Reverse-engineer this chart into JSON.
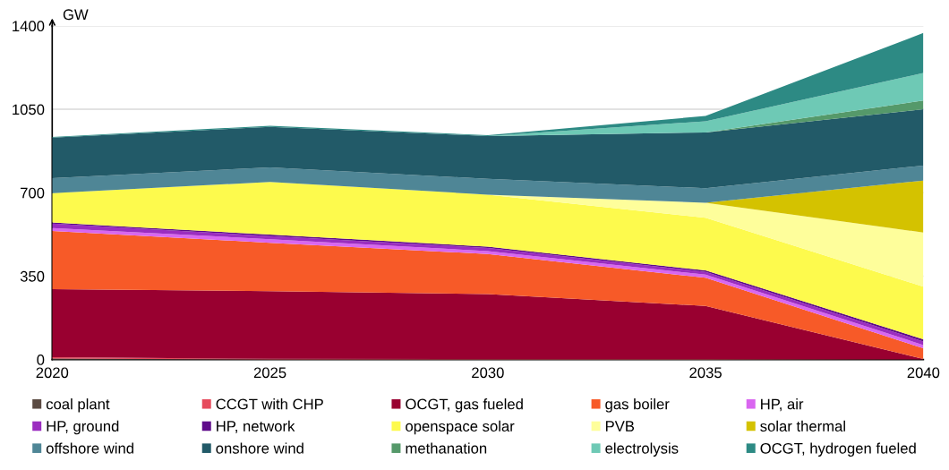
{
  "chart_data": {
    "type": "area",
    "stacked": true,
    "ylabel": "GW",
    "x": [
      2020,
      2025,
      2030,
      2035,
      2040
    ],
    "xlim": [
      2020,
      2040
    ],
    "xticks": [
      2020,
      2025,
      2030,
      2035,
      2040
    ],
    "ylim": [
      0,
      1400
    ],
    "yticks": [
      0,
      350,
      700,
      1050,
      1400
    ],
    "grid": "y",
    "legend": "bottom",
    "series": [
      {
        "name": "coal plant",
        "color": "#5a4a42",
        "values": [
          4,
          0,
          0,
          0,
          0
        ]
      },
      {
        "name": "CCGT with CHP",
        "color": "#e64a5c",
        "values": [
          6,
          3,
          2,
          2,
          0
        ]
      },
      {
        "name": "OCGT, gas fueled",
        "color": "#990030",
        "values": [
          285,
          284,
          273,
          223,
          2
        ]
      },
      {
        "name": "gas boiler",
        "color": "#f75a28",
        "values": [
          244,
          203,
          168,
          118,
          45
        ]
      },
      {
        "name": "HP, air",
        "color": "#d966f0",
        "values": [
          13,
          15,
          12,
          13,
          14
        ]
      },
      {
        "name": "HP, ground",
        "color": "#9b2dc0",
        "values": [
          18,
          13,
          13,
          12,
          15
        ]
      },
      {
        "name": "HP, network",
        "color": "#5e0a8a",
        "values": [
          5,
          6,
          6,
          6,
          9
        ]
      },
      {
        "name": "openspace solar",
        "color": "#fdfa4d",
        "values": [
          123,
          221,
          218,
          221,
          221
        ]
      },
      {
        "name": "PVB",
        "color": "#fefe9b",
        "values": [
          0,
          0,
          0,
          63,
          227
        ]
      },
      {
        "name": "solar thermal",
        "color": "#d4c200",
        "values": [
          0,
          0,
          0,
          0,
          218
        ]
      },
      {
        "name": "offshore wind",
        "color": "#4f8696",
        "values": [
          63,
          61,
          66,
          61,
          63
        ]
      },
      {
        "name": "onshore wind",
        "color": "#225a68",
        "values": [
          170,
          170,
          180,
          234,
          236
        ]
      },
      {
        "name": "methanation",
        "color": "#55996a",
        "values": [
          0,
          0,
          0,
          0,
          37
        ]
      },
      {
        "name": "electrolysis",
        "color": "#6ec9b5",
        "values": [
          0,
          0,
          0,
          47,
          115
        ]
      },
      {
        "name": "OCGT, hydrogen fueled",
        "color": "#2d8a84",
        "values": [
          3,
          5,
          3,
          22,
          168
        ]
      }
    ]
  }
}
